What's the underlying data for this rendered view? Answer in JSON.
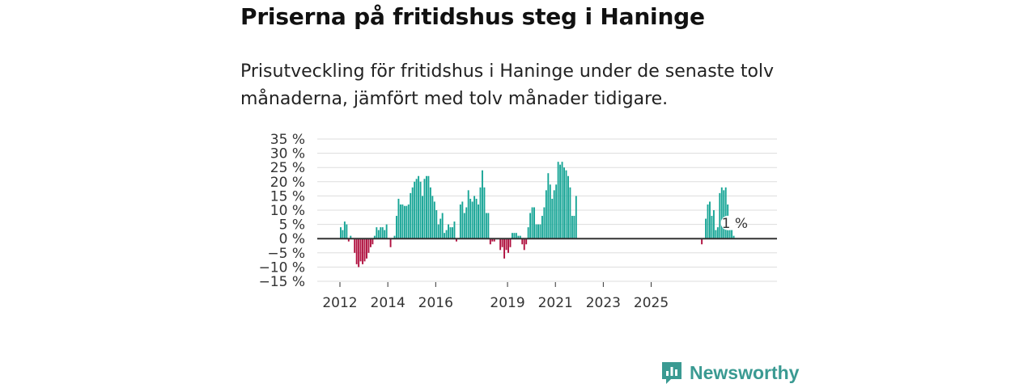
{
  "header": {
    "title": "Priserna på fritidshus steg i Haninge",
    "subtitle": "Prisutveckling för fritidshus i Haninge under de senaste tolv månaderna, jämfört med tolv månader tidigare."
  },
  "brand": {
    "name": "Newsworthy",
    "color": "#3a9a92"
  },
  "colors": {
    "positive": "#17a596",
    "negative": "#b0103f",
    "zero_line": "#333333",
    "grid": "#dddddd"
  },
  "chart_data": {
    "type": "bar",
    "x_unit": "monthly",
    "start": "2012-01",
    "values": [
      4,
      3,
      6,
      5,
      -1,
      1,
      0,
      -5,
      -9,
      -10,
      -8,
      -9,
      -8,
      -7,
      -5,
      -3,
      -2,
      1,
      4,
      3,
      4,
      4,
      3,
      5,
      0,
      -3,
      0,
      1,
      8,
      14,
      12,
      12,
      11.5,
      11.5,
      12,
      16,
      18,
      20,
      21,
      22,
      20,
      15,
      21,
      22,
      22,
      18,
      15,
      13,
      10,
      5,
      7,
      9,
      2,
      3,
      5,
      4,
      4,
      6,
      -1,
      0,
      12,
      13,
      9,
      11,
      17,
      14,
      13,
      15,
      14,
      12,
      18,
      24,
      18,
      9,
      9,
      -2,
      -1,
      -1,
      0,
      0,
      -4,
      -3,
      -7,
      -4,
      -5,
      -3,
      2,
      2,
      2,
      1,
      1,
      -2,
      -4,
      -2,
      4,
      9,
      11,
      11,
      5,
      5,
      5,
      8,
      11,
      17,
      23,
      19,
      14,
      17,
      19,
      27,
      26,
      27,
      25,
      24,
      22,
      18,
      8,
      8,
      15,
      null,
      null,
      null,
      null,
      null,
      null,
      null,
      null,
      null,
      null,
      null,
      null,
      null,
      null,
      null,
      null,
      null,
      null,
      null,
      null,
      null,
      null,
      null,
      null,
      null,
      null,
      null,
      null,
      null,
      null,
      null,
      null,
      null,
      null,
      null,
      null,
      null,
      null,
      null,
      null,
      null,
      null,
      null,
      null,
      null,
      null,
      null,
      null,
      null,
      null,
      null,
      null,
      null,
      null,
      null,
      null,
      null,
      null,
      null,
      null,
      null,
      null,
      -2,
      null,
      7,
      12,
      13,
      8,
      10,
      3,
      4,
      16,
      18,
      17,
      18,
      12,
      3,
      3,
      1
    ],
    "ylim": [
      -15,
      35
    ],
    "y_ticks": [
      "35 %",
      "30 %",
      "25 %",
      "20 %",
      "15 %",
      "10 %",
      "5 %",
      "0 %",
      "−5 %",
      "−10 %",
      "−15 %"
    ],
    "y_tick_values": [
      35,
      30,
      25,
      20,
      15,
      10,
      5,
      0,
      -5,
      -10,
      -15
    ],
    "x_ticks": [
      "2012",
      "2014",
      "2016",
      "2019",
      "2021",
      "2023",
      "2025"
    ],
    "x_tick_years": [
      2012,
      2014,
      2016,
      2019,
      2021,
      2023,
      2025
    ],
    "last_label": "1 %",
    "grid": true
  }
}
